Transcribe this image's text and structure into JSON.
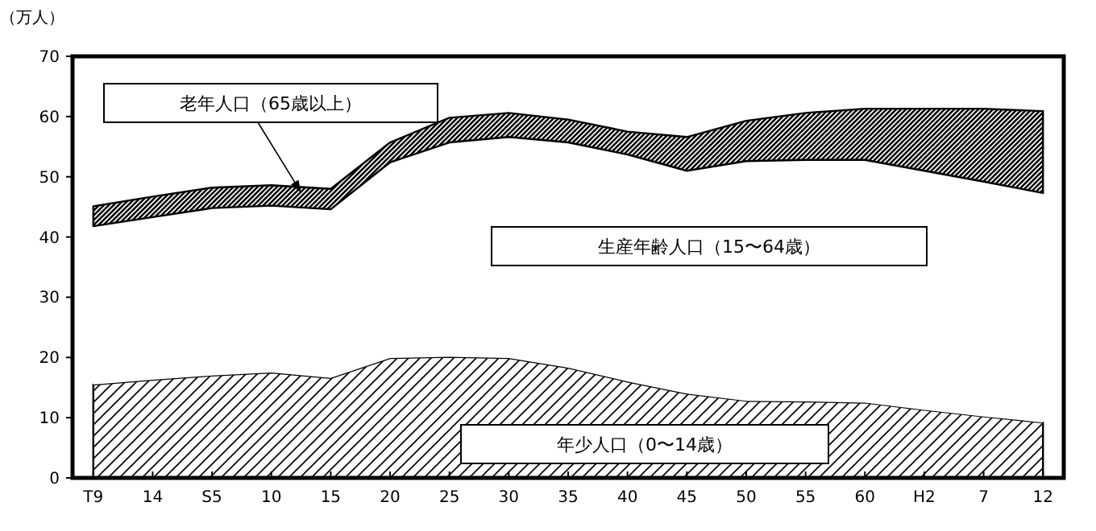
{
  "chart_data": {
    "type": "area",
    "stacked": true,
    "ylabel": "（万人）",
    "categories": [
      "T9",
      "14",
      "S5",
      "10",
      "15",
      "20",
      "25",
      "30",
      "35",
      "40",
      "45",
      "50",
      "55",
      "60",
      "H2",
      "7",
      "12"
    ],
    "series": [
      {
        "name": "年少人口（0〜14歳）",
        "color": "#000000",
        "values": [
          15.5,
          16.3,
          17,
          17.5,
          16.6,
          19.9,
          20.1,
          19.9,
          18.3,
          16,
          14,
          12.8,
          12.7,
          12.5,
          11.3,
          10.2,
          9.2
        ]
      },
      {
        "name": "生産年齢人口（15〜64歳）",
        "color": "#ffffff",
        "values": [
          26.3,
          27,
          27.8,
          27.7,
          28,
          32.5,
          35.6,
          36.7,
          37.4,
          37.7,
          37,
          39.8,
          40.1,
          40.3,
          39.7,
          39,
          38.1
        ]
      },
      {
        "name": "老年人口（65歳以上）",
        "color": "#000000",
        "values": [
          3.3,
          3.4,
          3.4,
          3.4,
          3.4,
          3.3,
          4.1,
          4,
          3.8,
          3.8,
          5.6,
          6.7,
          7.8,
          8.5,
          10.3,
          12.1,
          13.6
        ]
      }
    ],
    "ylim": [
      0,
      70
    ],
    "yticks": [
      0,
      10,
      20,
      30,
      40,
      50,
      60,
      70
    ]
  }
}
